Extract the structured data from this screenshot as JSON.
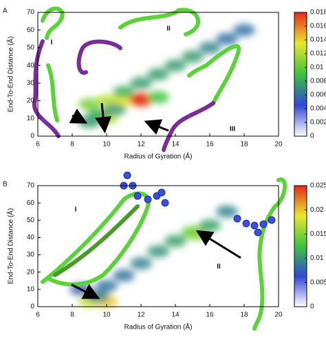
{
  "chart_data": [
    {
      "type": "density",
      "panel_label": "A",
      "xlabel": "Radius of Gyration (Å)",
      "ylabel": "End-To-End Distance (Å)",
      "xlim": [
        6,
        20
      ],
      "xticks": [
        6,
        8,
        10,
        12,
        14,
        16,
        18,
        20
      ],
      "ylim": [
        0,
        70
      ],
      "yticks": [
        0,
        10,
        20,
        30,
        40,
        50,
        60,
        70
      ],
      "clim": [
        0,
        0.018
      ],
      "cticks": [
        0,
        0.002,
        0.004,
        0.006,
        0.008,
        0.01,
        0.012,
        0.014,
        0.016,
        0.018
      ],
      "colorscale": [
        "#ffffff",
        "#3047d8",
        "#3cc43c",
        "#e8e82a",
        "#e8281c"
      ],
      "annotations": [
        "I",
        "II",
        "III"
      ],
      "x": [
        9,
        10,
        11,
        12,
        12,
        10,
        9.5,
        11,
        12,
        13,
        14,
        15,
        16,
        17,
        18,
        9,
        13,
        10.5
      ],
      "y": [
        18,
        20,
        20,
        20,
        21,
        10,
        12,
        25,
        30,
        35,
        40,
        45,
        50,
        55,
        60,
        8,
        22,
        15
      ],
      "values": [
        0.008,
        0.01,
        0.012,
        0.016,
        0.018,
        0.01,
        0.005,
        0.005,
        0.004,
        0.004,
        0.004,
        0.004,
        0.003,
        0.002,
        0.002,
        0.004,
        0.006,
        0.004
      ]
    },
    {
      "type": "density",
      "panel_label": "B",
      "xlabel": "Radius of Gyration (Å)",
      "ylabel": "End-To-End Distance (Å)",
      "xlim": [
        6,
        20
      ],
      "xticks": [
        6,
        8,
        10,
        12,
        14,
        16,
        18,
        20
      ],
      "ylim": [
        0,
        70
      ],
      "yticks": [
        0,
        10,
        20,
        30,
        40,
        50,
        60,
        70
      ],
      "clim": [
        0,
        0.025
      ],
      "cticks": [
        0,
        0.005,
        0.01,
        0.015,
        0.02,
        0.025
      ],
      "colorscale": [
        "#ffffff",
        "#3047d8",
        "#3cc43c",
        "#e8e82a",
        "#e8281c"
      ],
      "annotations": [
        "I",
        "II"
      ],
      "x": [
        9,
        10,
        9.5,
        10,
        11,
        12,
        13,
        14,
        15,
        15.3,
        16,
        17,
        8.5
      ],
      "y": [
        3,
        3,
        6,
        12,
        18,
        25,
        32,
        38,
        43,
        42,
        47,
        55,
        10
      ],
      "values": [
        0.015,
        0.018,
        0.004,
        0.003,
        0.003,
        0.004,
        0.005,
        0.006,
        0.009,
        0.012,
        0.006,
        0.004,
        0.002
      ]
    }
  ]
}
